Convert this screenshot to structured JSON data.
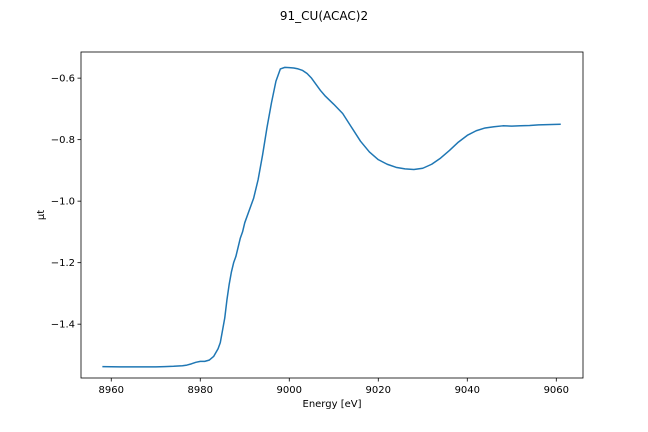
{
  "chart_data": {
    "type": "line",
    "title": "91_CU(ACAC)2",
    "xlabel": "Energy [eV]",
    "ylabel": "μt",
    "xlim": [
      8953.2,
      9066.0
    ],
    "ylim": [
      -1.575,
      -0.515
    ],
    "xticks": [
      8960,
      8980,
      9000,
      9020,
      9040,
      9060
    ],
    "yticks": [
      -1.4,
      -1.2,
      -1.0,
      -0.8,
      -0.6
    ],
    "grid": false,
    "color": "#1f77b4",
    "series": [
      {
        "x": [
          8958.0,
          8962,
          8966,
          8970,
          8972,
          8974,
          8976,
          8977,
          8978,
          8979,
          8980,
          8981,
          8982,
          8983,
          8984,
          8984.5,
          8985,
          8985.5,
          8986,
          8986.5,
          8987,
          8987.5,
          8988,
          8988.5,
          8989,
          8989.5,
          8990,
          8991,
          8992,
          8993,
          8994,
          8995,
          8996,
          8997,
          8998,
          8999,
          9000,
          9001,
          9002,
          9003,
          9004,
          9005,
          9006,
          9007,
          9008,
          9010,
          9012,
          9014,
          9016,
          9018,
          9020,
          9022,
          9024,
          9026,
          9028,
          9030,
          9032,
          9034,
          9036,
          9038,
          9040,
          9042,
          9044,
          9046,
          9048,
          9050,
          9052,
          9054,
          9056,
          9058,
          9061.0
        ],
        "y": [
          -1.538,
          -1.539,
          -1.539,
          -1.539,
          -1.538,
          -1.537,
          -1.535,
          -1.533,
          -1.529,
          -1.524,
          -1.521,
          -1.521,
          -1.517,
          -1.505,
          -1.48,
          -1.46,
          -1.42,
          -1.38,
          -1.32,
          -1.27,
          -1.23,
          -1.2,
          -1.18,
          -1.15,
          -1.12,
          -1.1,
          -1.07,
          -1.03,
          -0.99,
          -0.93,
          -0.85,
          -0.76,
          -0.68,
          -0.61,
          -0.57,
          -0.565,
          -0.566,
          -0.567,
          -0.57,
          -0.575,
          -0.585,
          -0.6,
          -0.62,
          -0.64,
          -0.657,
          -0.685,
          -0.715,
          -0.76,
          -0.805,
          -0.84,
          -0.865,
          -0.88,
          -0.89,
          -0.895,
          -0.897,
          -0.893,
          -0.88,
          -0.86,
          -0.835,
          -0.808,
          -0.786,
          -0.771,
          -0.762,
          -0.758,
          -0.755,
          -0.756,
          -0.755,
          -0.754,
          -0.752,
          -0.751,
          -0.75
        ]
      }
    ]
  }
}
